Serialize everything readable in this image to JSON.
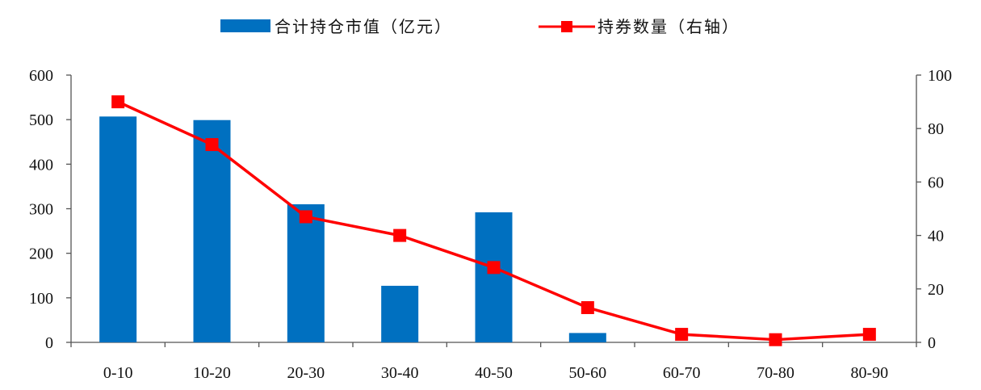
{
  "chart_data": {
    "type": "bar",
    "categories": [
      "0-10",
      "10-20",
      "20-30",
      "30-40",
      "40-50",
      "50-60",
      "60-70",
      "70-80",
      "80-90"
    ],
    "series": [
      {
        "name": "合计持仓市值（亿元）",
        "type": "bar",
        "axis": "left",
        "color": "#0070C0",
        "values": [
          507,
          499,
          310,
          127,
          292,
          21,
          0,
          0,
          0
        ]
      },
      {
        "name": "持券数量（右轴）",
        "type": "line",
        "axis": "right",
        "color": "#FF0000",
        "values": [
          90,
          74,
          47,
          40,
          28,
          13,
          3,
          1,
          3
        ]
      }
    ],
    "y_left": {
      "min": 0,
      "max": 600,
      "ticks": [
        "0",
        "100",
        "200",
        "300",
        "400",
        "500",
        "600"
      ]
    },
    "y_right": {
      "min": 0,
      "max": 100,
      "ticks": [
        "0",
        "20",
        "40",
        "60",
        "80",
        "100"
      ]
    },
    "legend_position": "top-center",
    "grid": false
  }
}
